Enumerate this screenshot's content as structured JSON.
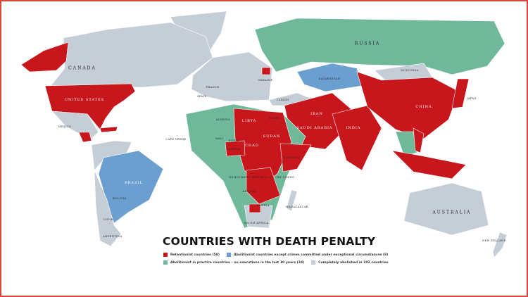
{
  "title": "COUNTRIES WITH DEATH PENALTY",
  "colors": {
    "retentionist": "#c8161d",
    "exceptional": "#6b9fd0",
    "in_practice": "#6fb99a",
    "abolished": "#c5ced7",
    "frame": "#d9463b"
  },
  "legend": [
    {
      "key": "retentionist",
      "label": "Retentionist countries (58)"
    },
    {
      "key": "exceptional",
      "label": "Abolitionist countries except crimes committed under exceptional circumstances (8)"
    },
    {
      "key": "in_practice",
      "label": "Abolitionist in practice countries – no executions in the last 10 years (34)"
    },
    {
      "key": "abolished",
      "label": "Completely abolished in 102 countries"
    }
  ],
  "labels": [
    "CANADA",
    "UNITED STATES",
    "MEXICO",
    "BRAZIL",
    "BOLIVIA",
    "CHILE",
    "ARGENTINA",
    "RUSSIA",
    "KAZAKHSTAN",
    "MONGOLIA",
    "CHINA",
    "JAPAN",
    "INDIA",
    "IRAN",
    "SAUDI ARABIA",
    "TURKEY",
    "UKRAINE",
    "ALGERIA",
    "LIBYA",
    "EGYPT",
    "MALI",
    "NIGER",
    "CHAD",
    "SUDAN",
    "NIGERIA",
    "ETHIOPIA",
    "DEMOCRATIC REPUBLIC OF THE CONGO",
    "ANGOLA",
    "ZAMBIA",
    "SOUTH AFRICA",
    "AUSTRALIA",
    "NEW ZEALAND",
    "CAPE VERDE",
    "MADAGASCAR",
    "SPAIN",
    "FRANCE"
  ]
}
